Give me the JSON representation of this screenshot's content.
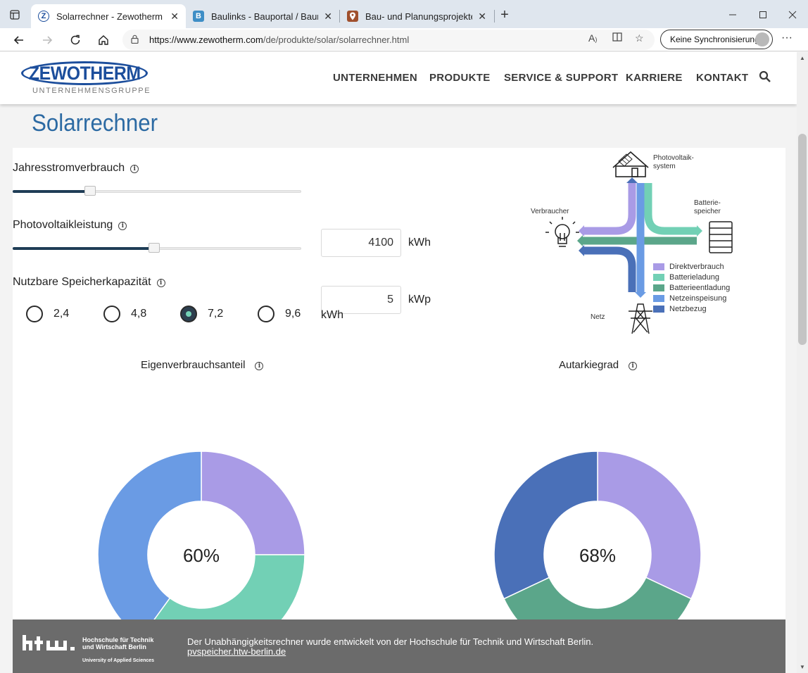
{
  "browser": {
    "tabs": [
      {
        "title": "Solarrechner - Zewotherm",
        "favicon": "Z",
        "favicon_color": "#1c4e9c",
        "active": true
      },
      {
        "title": "Baulinks - Bauportal / Baumagaz",
        "favicon": "B",
        "favicon_color": "#3e8ec6",
        "active": false
      },
      {
        "title": "Bau- und Planungsprojekte auf B",
        "favicon": "map-pin",
        "favicon_color": "#a0502d",
        "active": false
      }
    ],
    "url_host": "https://www.zewotherm.com",
    "url_path": "/de/produkte/solar/solarrechner.html",
    "sync_label": "Keine Synchronisierung"
  },
  "site": {
    "logo_word": "ZEWOTHERM",
    "logo_sub": "UNTERNEHMENSGRUPPE",
    "menu": [
      "UNTERNEHMEN",
      "PRODUKTE",
      "SERVICE & SUPPORT",
      "KARRIERE",
      "KONTAKT"
    ],
    "brand_color": "#1c4e9c"
  },
  "page": {
    "title": "Solarrechner"
  },
  "calculator": {
    "consumption": {
      "label": "Jahresstromverbrauch",
      "value": "4100",
      "unit": "kWh",
      "slider_fraction": 0.26
    },
    "pv": {
      "label": "Photovoltaikleistung",
      "value": "5",
      "unit": "kWp",
      "slider_fraction": 0.49
    },
    "storage": {
      "label": "Nutzbare Speicherkapazität",
      "options": [
        "2,4",
        "4,8",
        "7,2",
        "9,6"
      ],
      "selected": "7,2",
      "unit": "kWh"
    }
  },
  "diagram": {
    "labels": {
      "pv": "Photovoltaik-\nsystem",
      "consumer": "Verbraucher",
      "battery": "Batterie-\nspeicher",
      "grid": "Netz"
    },
    "legend": [
      {
        "label": "Direktverbrauch",
        "color": "#a99be6"
      },
      {
        "label": "Batterieladung",
        "color": "#72d0b5"
      },
      {
        "label": "Batterieentladung",
        "color": "#5ba68a"
      },
      {
        "label": "Netzeinspeisung",
        "color": "#6a9be4"
      },
      {
        "label": "Netzbezug",
        "color": "#4a70b8"
      }
    ]
  },
  "chart_data": [
    {
      "type": "pie",
      "title": "Eigenverbrauchsanteil",
      "center_label": "60%",
      "slices": [
        {
          "name": "Direktverbrauch",
          "value": 25,
          "color": "#a99be6"
        },
        {
          "name": "Batterieladung",
          "value": 35,
          "color": "#72d0b5"
        },
        {
          "name": "Netzeinspeisung",
          "value": 40,
          "color": "#6a9be4"
        }
      ]
    },
    {
      "type": "pie",
      "title": "Autarkiegrad",
      "center_label": "68%",
      "slices": [
        {
          "name": "Direktverbrauch",
          "value": 32,
          "color": "#a99be6"
        },
        {
          "name": "Batterieentladung",
          "value": 36,
          "color": "#5ba68a"
        },
        {
          "name": "Netzbezug",
          "value": 32,
          "color": "#4a70b8"
        }
      ]
    }
  ],
  "footer": {
    "htw_line1": "Hochschule für Technik",
    "htw_line2": "und Wirtschaft Berlin",
    "htw_sub": "University of Applied Sciences",
    "text": "Der Unabhängigkeitsrechner wurde entwickelt von der Hochschule für Technik und Wirtschaft Berlin.",
    "link": "pvspeicher.htw-berlin.de"
  }
}
